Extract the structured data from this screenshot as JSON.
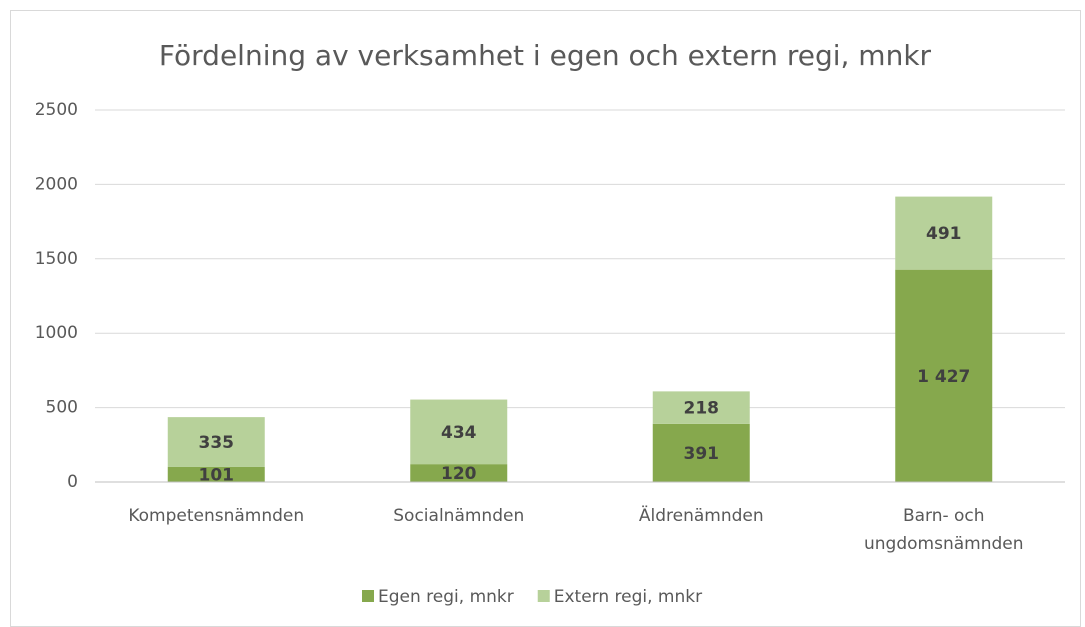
{
  "chart_data": {
    "type": "stacked_bar",
    "title": "Fördelning av verksamhet i egen och extern regi, mnkr",
    "categories": [
      "Kompetensnämnden",
      "Socialnämnden",
      "Äldrenämnden",
      "Barn- och ungdomsnämnden"
    ],
    "series": [
      {
        "name": "Egen regi, mnkr",
        "color": "#86a84d",
        "values": [
          101,
          120,
          391,
          1427
        ],
        "value_labels": [
          "101",
          "120",
          "391",
          "1 427"
        ]
      },
      {
        "name": "Extern regi, mnkr",
        "color": "#b7d19a",
        "values": [
          335,
          434,
          218,
          491
        ]
      }
    ],
    "ylim": [
      0,
      2500
    ],
    "yticks": [
      0,
      500,
      1000,
      1500,
      2000,
      2500
    ],
    "grid": true,
    "legend": "bottom"
  }
}
